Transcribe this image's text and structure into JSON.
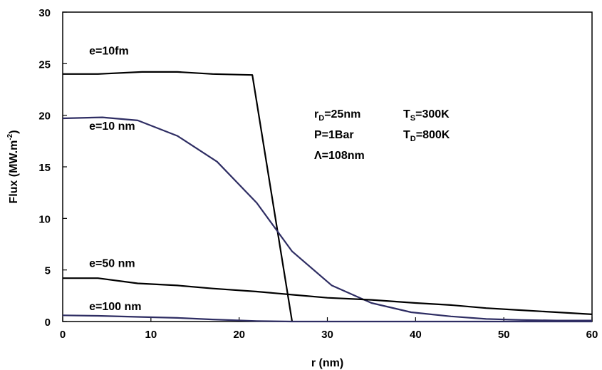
{
  "chart_data": {
    "type": "line",
    "xlabel": "r (nm)",
    "ylabel": {
      "main": "Flux (MW.m",
      "sup": "-2",
      "end": ")"
    },
    "xlim": [
      0,
      60
    ],
    "ylim": [
      0,
      30
    ],
    "xticks": [
      0,
      10,
      20,
      30,
      40,
      50,
      60
    ],
    "yticks": [
      0,
      5,
      10,
      15,
      20,
      25,
      30
    ],
    "grid": false,
    "series": [
      {
        "name": "e=10fm",
        "color": "#000000",
        "x": [
          0,
          4,
          9,
          13,
          17,
          21.5,
          26
        ],
        "y": [
          24.0,
          24.0,
          24.2,
          24.2,
          24.0,
          23.9,
          0
        ]
      },
      {
        "name": "e=10 nm",
        "color": "#2e2d63",
        "x": [
          0,
          4.5,
          8.5,
          13,
          17.5,
          22,
          26,
          30.5,
          35,
          39.5,
          44,
          48,
          52,
          56,
          60
        ],
        "y": [
          19.7,
          19.8,
          19.5,
          18.0,
          15.5,
          11.5,
          6.8,
          3.5,
          1.8,
          0.9,
          0.5,
          0.25,
          0.15,
          0.1,
          0.1
        ]
      },
      {
        "name": "e=50 nm",
        "color": "#000000",
        "x": [
          0,
          4,
          8.5,
          13,
          17,
          22,
          26,
          30,
          35,
          40,
          44,
          48,
          52,
          56,
          60
        ],
        "y": [
          4.2,
          4.2,
          3.7,
          3.5,
          3.2,
          2.9,
          2.6,
          2.3,
          2.1,
          1.8,
          1.6,
          1.3,
          1.1,
          0.9,
          0.7
        ]
      },
      {
        "name": "e=100 nm",
        "color": "#2e2d63",
        "x": [
          0,
          4,
          8.5,
          13,
          17,
          22,
          26,
          30,
          35,
          40,
          50,
          60
        ],
        "y": [
          0.6,
          0.55,
          0.45,
          0.35,
          0.2,
          0.05,
          0,
          0,
          0,
          0,
          0,
          0
        ]
      }
    ],
    "series_labels": [
      {
        "text": "e=10fm",
        "x": 3,
        "y": 25.9
      },
      {
        "text": "e=10 nm",
        "x": 3,
        "y": 18.6
      },
      {
        "text": "e=50 nm",
        "x": 3,
        "y": 5.3
      },
      {
        "text": "e=100 nm",
        "x": 3,
        "y": 1.1
      }
    ],
    "annotations": {
      "rD": {
        "main": "r",
        "sub": "D",
        "rest": "=25nm"
      },
      "Ts": {
        "main": "T",
        "sub": "S",
        "rest": "=300K"
      },
      "P": "P=1Bar",
      "TD": {
        "main": "T",
        "sub": "D",
        "rest": "=800K"
      },
      "Lambda": "Λ=108nm"
    }
  }
}
